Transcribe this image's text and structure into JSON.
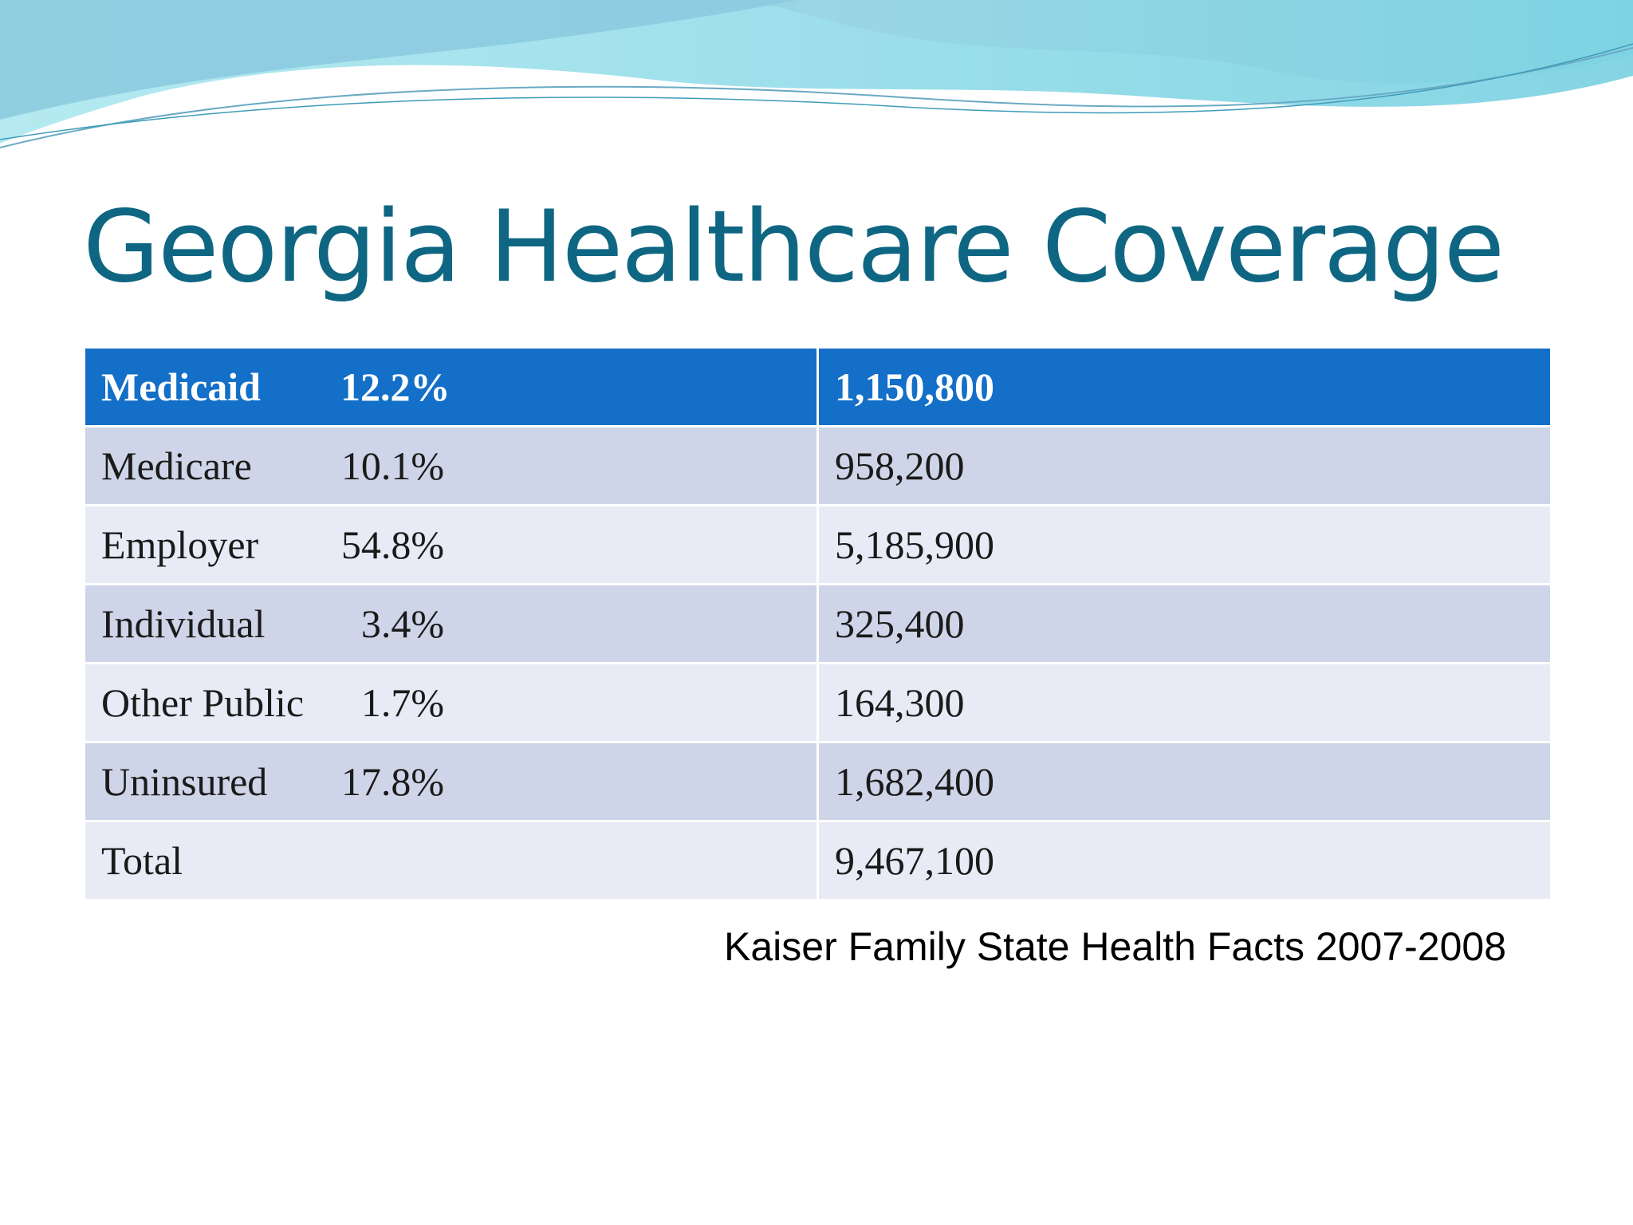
{
  "slide": {
    "title": "Georgia Healthcare Coverage",
    "source": "Kaiser Family State Health Facts 2007-2008",
    "colors": {
      "title": "#0e6682",
      "header_row": "#136fc7",
      "row_dark": "#cfd5e8",
      "row_light": "#e8ebf5",
      "wave_light": "#8fd9e3",
      "wave_dark": "#5fa7c9"
    }
  },
  "table": {
    "rows": [
      {
        "category": "Medicaid",
        "percent": "12.2%",
        "count": "1,150,800"
      },
      {
        "category": "Medicare",
        "percent": "10.1%",
        "count": "958,200"
      },
      {
        "category": "Employer",
        "percent": "54.8%",
        "count": "5,185,900"
      },
      {
        "category": "Individual",
        "percent": "3.4%",
        "count": "325,400"
      },
      {
        "category": "Other Public",
        "percent": "1.7%",
        "count": "164,300"
      },
      {
        "category": "Uninsured",
        "percent": "17.8%",
        "count": "1,682,400"
      },
      {
        "category": "Total",
        "percent": "",
        "count": "9,467,100"
      }
    ]
  }
}
